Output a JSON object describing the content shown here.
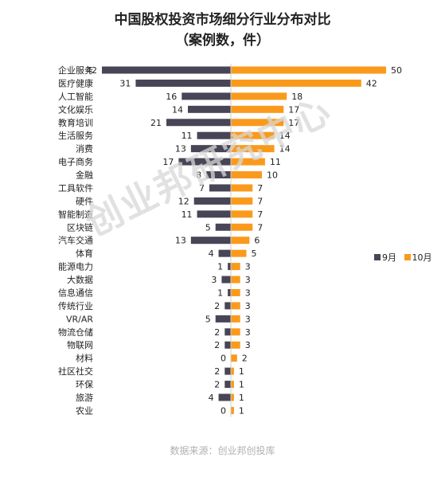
{
  "title": "中国股权投资市场细分行业分布对比",
  "subtitle": "（案例数，件）",
  "source": "数据来源：创业邦创投库",
  "watermark": "创业邦研究中心",
  "colors": {
    "sep": "#474556",
    "oct": "#fa9a1c"
  },
  "chart_data": {
    "type": "bar",
    "categories": [
      "企业服务",
      "医疗健康",
      "人工智能",
      "文化娱乐",
      "教育培训",
      "生活服务",
      "消费",
      "电子商务",
      "金融",
      "工具软件",
      "硬件",
      "智能制造",
      "区块链",
      "汽车交通",
      "体育",
      "能源电力",
      "大数据",
      "信息通信",
      "传统行业",
      "VR/AR",
      "物流仓储",
      "物联网",
      "材料",
      "社区社交",
      "环保",
      "旅游",
      "农业"
    ],
    "series": [
      {
        "name": "9月",
        "values": [
          42,
          31,
          16,
          14,
          21,
          11,
          13,
          17,
          8,
          7,
          12,
          11,
          5,
          13,
          4,
          1,
          3,
          1,
          2,
          5,
          2,
          2,
          0,
          2,
          2,
          4,
          0
        ]
      },
      {
        "name": "10月",
        "values": [
          50,
          42,
          18,
          17,
          17,
          14,
          14,
          11,
          10,
          7,
          7,
          7,
          7,
          6,
          5,
          3,
          3,
          3,
          3,
          3,
          3,
          3,
          2,
          1,
          1,
          1,
          1
        ]
      }
    ],
    "legend_position": "right",
    "grid": false
  }
}
